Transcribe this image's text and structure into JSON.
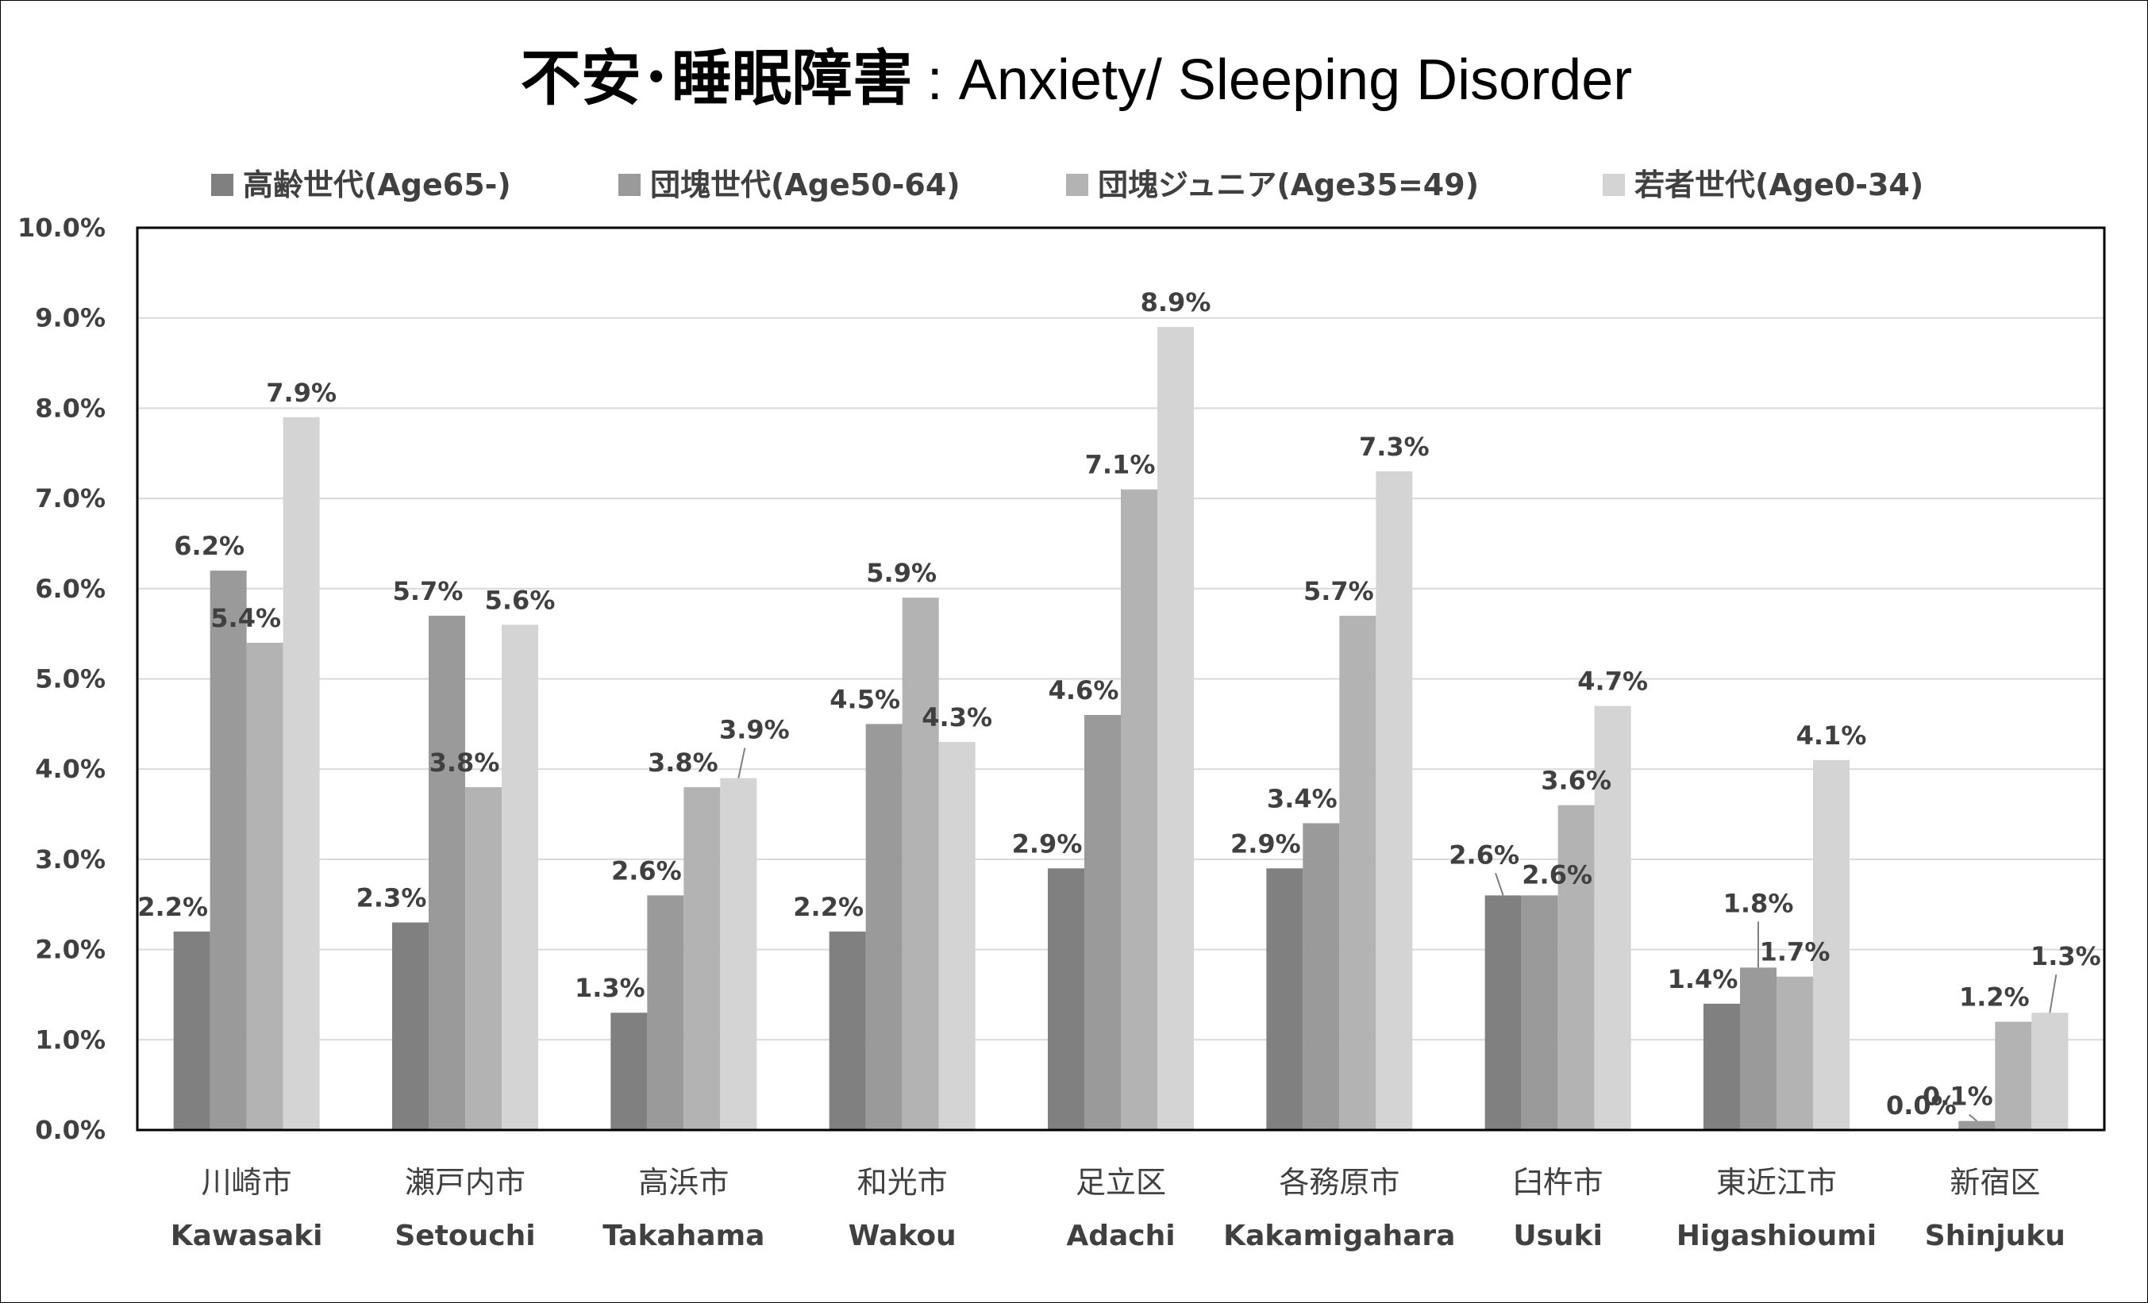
{
  "chart_data": {
    "type": "bar",
    "title_jp": "不安･睡眠障害",
    "title_en": ": Anxiety/ Sleeping Disorder",
    "categories": [
      {
        "jp": "川崎市",
        "en": "Kawasaki"
      },
      {
        "jp": "瀬戸内市",
        "en": "Setouchi"
      },
      {
        "jp": "高浜市",
        "en": "Takahama"
      },
      {
        "jp": "和光市",
        "en": "Wakou"
      },
      {
        "jp": "足立区",
        "en": "Adachi"
      },
      {
        "jp": "各務原市",
        "en": "Kakamigahara"
      },
      {
        "jp": "臼杵市",
        "en": "Usuki"
      },
      {
        "jp": "東近江市",
        "en": "Higashioumi"
      },
      {
        "jp": "新宿区",
        "en": "Shinjuku"
      }
    ],
    "series": [
      {
        "name": "高齢世代(Age65-)",
        "color": "#808080",
        "values": [
          2.2,
          2.3,
          1.3,
          2.2,
          2.9,
          2.9,
          2.6,
          1.4,
          0.0
        ],
        "labels": [
          "2.2%",
          "2.3%",
          "1.3%",
          "2.2%",
          "2.9%",
          "2.9%",
          "2.6%",
          "1.4%",
          "0.0%"
        ]
      },
      {
        "name": "団塊世代(Age50-64)",
        "color": "#9a9a9a",
        "values": [
          6.2,
          5.7,
          2.6,
          4.5,
          4.6,
          3.4,
          2.6,
          1.8,
          0.1
        ],
        "labels": [
          "6.2%",
          "5.7%",
          "2.6%",
          "4.5%",
          "4.6%",
          "3.4%",
          "2.6%",
          "1.8%",
          "0.1%"
        ]
      },
      {
        "name": "団塊ジュニア(Age35=49)",
        "color": "#b3b3b3",
        "values": [
          5.4,
          3.8,
          3.8,
          5.9,
          7.1,
          5.7,
          3.6,
          1.7,
          1.2
        ],
        "labels": [
          "5.4%",
          "3.8%",
          "3.8%",
          "5.9%",
          "7.1%",
          "5.7%",
          "3.6%",
          "1.7%",
          "1.2%"
        ]
      },
      {
        "name": "若者世代(Age0-34)",
        "color": "#d4d4d4",
        "values": [
          7.9,
          5.6,
          3.9,
          4.3,
          8.9,
          7.3,
          4.7,
          4.1,
          1.3
        ],
        "labels": [
          "7.9%",
          "5.6%",
          "3.9%",
          "4.3%",
          "8.9%",
          "7.3%",
          "4.7%",
          "4.1%",
          "1.3%"
        ]
      }
    ],
    "y_ticks": [
      "0.0%",
      "1.0%",
      "2.0%",
      "3.0%",
      "4.0%",
      "5.0%",
      "6.0%",
      "7.0%",
      "8.0%",
      "9.0%",
      "10.0%"
    ],
    "ylim": [
      0,
      10
    ],
    "grid": true,
    "legend_position": "top"
  }
}
